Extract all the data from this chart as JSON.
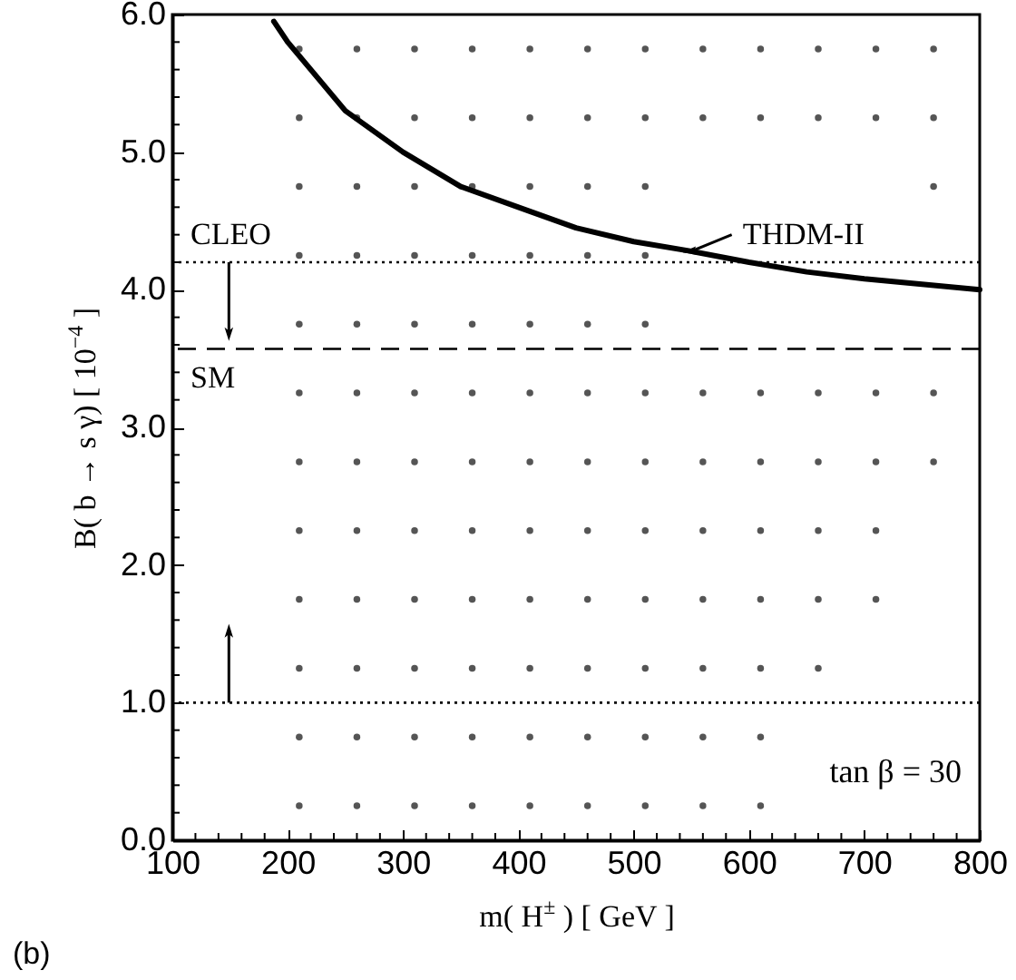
{
  "chart_data": {
    "type": "line",
    "xlabel": "m( H$^{±}$ )  [ GeV ]",
    "ylabel": "B( b → s γ)  [ 10$^{−4}$ ]",
    "annotations": [
      "tan β = 30",
      "(b)"
    ],
    "series": [
      {
        "type": "scatter",
        "marker": "circle",
        "color": "#555555",
        "x": [
          210,
          210,
          210,
          210,
          210,
          210,
          210,
          210,
          210,
          210,
          210,
          210,
          260,
          260,
          260,
          260,
          260,
          260,
          260,
          260,
          260,
          260,
          260,
          260,
          310,
          310,
          310,
          310,
          310,
          310,
          310,
          310,
          310,
          310,
          310,
          310,
          360,
          360,
          360,
          360,
          360,
          360,
          360,
          360,
          360,
          360,
          360,
          360,
          410,
          410,
          410,
          410,
          410,
          410,
          410,
          410,
          410,
          410,
          410,
          410,
          460,
          460,
          460,
          460,
          460,
          460,
          460,
          460,
          460,
          460,
          460,
          460,
          510,
          510,
          510,
          510,
          510,
          510,
          510,
          510,
          510,
          510,
          510,
          510,
          560,
          560,
          560,
          560,
          560,
          560,
          560,
          560,
          560,
          610,
          610,
          610,
          610,
          610,
          610,
          610,
          610,
          610,
          660,
          660,
          660,
          660,
          660,
          660,
          660,
          710,
          710,
          710,
          710,
          710,
          710,
          760,
          760,
          760,
          760,
          760
        ],
        "values": [
          0.25,
          0.75,
          1.25,
          1.75,
          2.25,
          2.75,
          3.25,
          3.75,
          4.25,
          4.75,
          5.25,
          5.75,
          0.25,
          0.75,
          1.25,
          1.75,
          2.25,
          2.75,
          3.25,
          3.75,
          4.25,
          4.75,
          5.25,
          5.75,
          0.25,
          0.75,
          1.25,
          1.75,
          2.25,
          2.75,
          3.25,
          3.75,
          4.25,
          4.75,
          5.25,
          5.75,
          0.25,
          0.75,
          1.25,
          1.75,
          2.25,
          2.75,
          3.25,
          3.75,
          4.25,
          4.75,
          5.25,
          5.75,
          0.25,
          0.75,
          1.25,
          1.75,
          2.25,
          2.75,
          3.25,
          3.75,
          4.25,
          4.75,
          5.25,
          5.75,
          0.25,
          0.75,
          1.25,
          1.75,
          2.25,
          2.75,
          3.25,
          3.75,
          4.25,
          4.75,
          5.25,
          5.75,
          0.25,
          0.75,
          1.25,
          1.75,
          2.25,
          2.75,
          3.25,
          3.75,
          4.25,
          4.75,
          5.25,
          5.75,
          0.25,
          0.75,
          1.25,
          1.75,
          2.25,
          2.75,
          3.25,
          5.25,
          5.75,
          0.25,
          0.75,
          1.25,
          1.75,
          2.25,
          2.75,
          3.25,
          5.25,
          5.75,
          1.25,
          1.75,
          2.25,
          2.75,
          3.25,
          5.25,
          5.75,
          1.75,
          2.25,
          2.75,
          3.25,
          5.25,
          5.75,
          2.75,
          3.25,
          4.75,
          5.25,
          5.75
        ]
      },
      {
        "name": "THDM-II",
        "color": "#000000",
        "x": [
          188,
          200,
          250,
          300,
          350,
          400,
          450,
          500,
          550,
          600,
          650,
          700,
          750,
          800
        ],
        "values": [
          5.95,
          5.8,
          5.3,
          5.0,
          4.75,
          4.6,
          4.45,
          4.35,
          4.28,
          4.2,
          4.13,
          4.08,
          4.04,
          4.0
        ]
      }
    ],
    "ref_lines": [
      {
        "axis": "y",
        "value": 4.2,
        "label": "CLEO",
        "line_style": "dotted",
        "color": "#000000"
      },
      {
        "axis": "y",
        "value": 3.57,
        "label": "SM",
        "line_style": "dashed",
        "color": "#000000"
      },
      {
        "axis": "y",
        "value": 1.0,
        "line_style": "dotted",
        "color": "#000000"
      }
    ],
    "xlim": [
      100,
      800
    ],
    "xticks": [
      100,
      200,
      300,
      400,
      500,
      600,
      700,
      800,
      {
        "value": 120,
        "label": null
      },
      {
        "value": 140,
        "label": null
      },
      {
        "value": 160,
        "label": null
      },
      {
        "value": 180,
        "label": null
      },
      {
        "value": 220,
        "label": null
      },
      {
        "value": 240,
        "label": null
      },
      {
        "value": 260,
        "label": null
      },
      {
        "value": 280,
        "label": null
      },
      {
        "value": 320,
        "label": null
      },
      {
        "value": 340,
        "label": null
      },
      {
        "value": 360,
        "label": null
      },
      {
        "value": 380,
        "label": null
      },
      {
        "value": 420,
        "label": null
      },
      {
        "value": 440,
        "label": null
      },
      {
        "value": 460,
        "label": null
      },
      {
        "value": 480,
        "label": null
      },
      {
        "value": 520,
        "label": null
      },
      {
        "value": 540,
        "label": null
      },
      {
        "value": 560,
        "label": null
      },
      {
        "value": 580,
        "label": null
      },
      {
        "value": 620,
        "label": null
      },
      {
        "value": 640,
        "label": null
      },
      {
        "value": 660,
        "label": null
      },
      {
        "value": 680,
        "label": null
      },
      {
        "value": 720,
        "label": null
      },
      {
        "value": 740,
        "label": null
      },
      {
        "value": 760,
        "label": null
      },
      {
        "value": 780,
        "label": null
      }
    ],
    "ylim": [
      0,
      6
    ],
    "yticks": [
      {
        "value": 0,
        "label": "0.0"
      },
      {
        "value": 1,
        "label": "1.0"
      },
      {
        "value": 2,
        "label": "2.0"
      },
      {
        "value": 3,
        "label": "3.0"
      },
      {
        "value": 4,
        "label": "4.0"
      },
      {
        "value": 5,
        "label": "5.0"
      },
      {
        "value": 6,
        "label": "6.0"
      },
      {
        "value": 0.2,
        "label": null
      },
      {
        "value": 0.4,
        "label": null
      },
      {
        "value": 0.6,
        "label": null
      },
      {
        "value": 0.8,
        "label": null
      },
      {
        "value": 1.2,
        "label": null
      },
      {
        "value": 1.4,
        "label": null
      },
      {
        "value": 1.6,
        "label": null
      },
      {
        "value": 1.8,
        "label": null
      },
      {
        "value": 2.2,
        "label": null
      },
      {
        "value": 2.4,
        "label": null
      },
      {
        "value": 2.6,
        "label": null
      },
      {
        "value": 2.8,
        "label": null
      },
      {
        "value": 3.2,
        "label": null
      },
      {
        "value": 3.4,
        "label": null
      },
      {
        "value": 3.6,
        "label": null
      },
      {
        "value": 3.8,
        "label": null
      },
      {
        "value": 4.2,
        "label": null
      },
      {
        "value": 4.4,
        "label": null
      },
      {
        "value": 4.6,
        "label": null
      },
      {
        "value": 4.8,
        "label": null
      },
      {
        "value": 5.2,
        "label": null
      },
      {
        "value": 5.4,
        "label": null
      },
      {
        "value": 5.6,
        "label": null
      },
      {
        "value": 5.8,
        "label": null
      }
    ],
    "grid": false
  }
}
